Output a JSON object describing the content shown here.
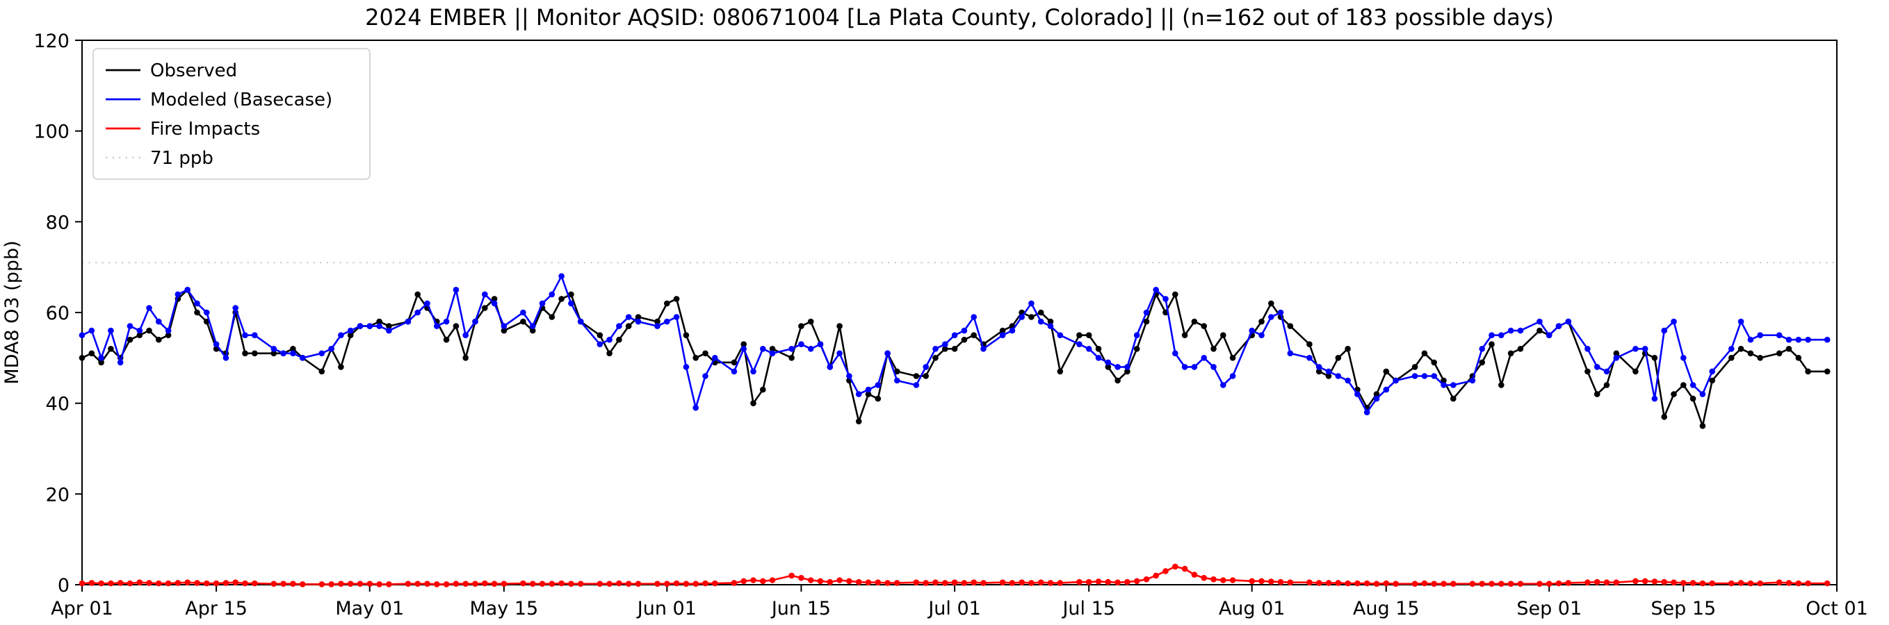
{
  "chart_data": {
    "type": "line",
    "title": "2024 EMBER || Monitor AQSID: 080671004 [La Plata County, Colorado] || (n=162 out of 183 possible days)",
    "xlabel": "",
    "ylabel": "MDA8 O3 (ppb)",
    "ylim": [
      0,
      120
    ],
    "yticks": [
      0,
      20,
      40,
      60,
      80,
      100,
      120
    ],
    "xlim": [
      0,
      183
    ],
    "xticks": [
      {
        "day": 0,
        "label": "Apr 01"
      },
      {
        "day": 14,
        "label": "Apr 15"
      },
      {
        "day": 30,
        "label": "May 01"
      },
      {
        "day": 44,
        "label": "May 15"
      },
      {
        "day": 61,
        "label": "Jun 01"
      },
      {
        "day": 75,
        "label": "Jun 15"
      },
      {
        "day": 91,
        "label": "Jul 01"
      },
      {
        "day": 105,
        "label": "Jul 15"
      },
      {
        "day": 122,
        "label": "Aug 01"
      },
      {
        "day": 136,
        "label": "Aug 15"
      },
      {
        "day": 153,
        "label": "Sep 01"
      },
      {
        "day": 167,
        "label": "Sep 15"
      },
      {
        "day": 183,
        "label": "Oct 01"
      }
    ],
    "threshold": {
      "value": 71,
      "label": "71 ppb",
      "color": "#d3d3d3",
      "style": "dotted"
    },
    "legend_position": "top-left",
    "grid": false,
    "x": [
      0,
      1,
      2,
      3,
      4,
      5,
      6,
      7,
      8,
      9,
      10,
      11,
      12,
      13,
      14,
      15,
      16,
      17,
      18,
      20,
      21,
      22,
      23,
      25,
      26,
      27,
      28,
      29,
      30,
      31,
      32,
      34,
      35,
      36,
      37,
      38,
      39,
      40,
      41,
      42,
      43,
      44,
      46,
      47,
      48,
      49,
      50,
      51,
      52,
      54,
      55,
      56,
      57,
      58,
      60,
      61,
      62,
      63,
      64,
      65,
      66,
      68,
      69,
      70,
      71,
      72,
      74,
      75,
      76,
      77,
      78,
      79,
      80,
      81,
      82,
      83,
      84,
      85,
      87,
      88,
      89,
      90,
      91,
      92,
      93,
      94,
      96,
      97,
      98,
      99,
      100,
      101,
      102,
      104,
      105,
      106,
      107,
      108,
      109,
      110,
      111,
      112,
      113,
      114,
      115,
      116,
      117,
      118,
      119,
      120,
      122,
      123,
      124,
      125,
      126,
      128,
      129,
      130,
      131,
      132,
      133,
      134,
      135,
      136,
      137,
      139,
      140,
      141,
      142,
      143,
      145,
      146,
      147,
      148,
      149,
      150,
      152,
      153,
      154,
      155,
      157,
      158,
      159,
      160,
      162,
      163,
      164,
      165,
      166,
      167,
      168,
      169,
      170,
      172,
      173,
      174,
      175,
      177,
      178,
      179,
      180,
      182
    ],
    "series": [
      {
        "name": "Observed",
        "color": "#000000",
        "marker": "circle",
        "values": [
          50,
          51,
          49,
          52,
          50,
          54,
          55,
          56,
          54,
          55,
          63,
          65,
          60,
          58,
          52,
          51,
          60,
          51,
          51,
          51,
          51,
          52,
          50,
          47,
          52,
          48,
          55,
          57,
          57,
          58,
          57,
          58,
          64,
          61,
          58,
          54,
          57,
          50,
          58,
          61,
          63,
          56,
          58,
          56,
          61,
          59,
          63,
          64,
          58,
          55,
          51,
          54,
          57,
          59,
          58,
          62,
          63,
          55,
          50,
          51,
          49,
          49,
          53,
          40,
          43,
          52,
          50,
          57,
          58,
          53,
          48,
          57,
          45,
          36,
          42,
          41,
          51,
          47,
          46,
          46,
          50,
          52,
          52,
          54,
          55,
          53,
          56,
          57,
          60,
          59,
          60,
          58,
          47,
          55,
          55,
          52,
          48,
          45,
          47,
          52,
          58,
          64,
          60,
          64,
          55,
          58,
          57,
          52,
          55,
          50,
          55,
          58,
          62,
          59,
          57,
          53,
          47,
          46,
          50,
          52,
          43,
          39,
          42,
          47,
          45,
          48,
          51,
          49,
          45,
          41,
          46,
          49,
          53,
          44,
          51,
          52,
          56,
          55,
          57,
          58,
          47,
          42,
          44,
          51,
          47,
          51,
          50,
          37,
          42,
          44,
          41,
          35,
          45,
          50,
          52,
          51,
          50,
          51,
          52,
          50,
          47,
          47
        ]
      },
      {
        "name": "Modeled (Basecase)",
        "color": "#0000ff",
        "marker": "circle",
        "values": [
          55,
          56,
          50,
          56,
          49,
          57,
          56,
          61,
          58,
          56,
          64,
          65,
          62,
          60,
          53,
          50,
          61,
          55,
          55,
          52,
          51,
          51,
          50,
          51,
          52,
          55,
          56,
          57,
          57,
          57,
          56,
          58,
          60,
          62,
          57,
          58,
          65,
          55,
          58,
          64,
          62,
          57,
          60,
          57,
          62,
          64,
          68,
          62,
          58,
          53,
          54,
          57,
          59,
          58,
          57,
          58,
          59,
          48,
          39,
          46,
          50,
          47,
          52,
          47,
          52,
          51,
          52,
          53,
          52,
          53,
          48,
          51,
          46,
          42,
          43,
          44,
          51,
          45,
          44,
          48,
          52,
          53,
          55,
          56,
          59,
          52,
          55,
          56,
          59,
          62,
          58,
          57,
          55,
          53,
          52,
          50,
          49,
          48,
          48,
          55,
          60,
          65,
          63,
          51,
          48,
          48,
          50,
          48,
          44,
          46,
          56,
          55,
          59,
          60,
          51,
          50,
          48,
          47,
          46,
          45,
          42,
          38,
          41,
          43,
          45,
          46,
          46,
          46,
          44,
          44,
          45,
          52,
          55,
          55,
          56,
          56,
          58,
          55,
          57,
          58,
          52,
          48,
          47,
          50,
          52,
          52,
          41,
          56,
          58,
          50,
          44,
          42,
          47,
          52,
          58,
          54,
          55,
          55,
          54,
          54,
          54,
          54
        ]
      },
      {
        "name": "Fire Impacts",
        "color": "#ff0000",
        "marker": "circle",
        "values": [
          0.3,
          0.4,
          0.3,
          0.3,
          0.4,
          0.3,
          0.5,
          0.4,
          0.3,
          0.3,
          0.4,
          0.5,
          0.4,
          0.3,
          0.3,
          0.4,
          0.5,
          0.3,
          0.3,
          0.2,
          0.2,
          0.2,
          0.1,
          0.1,
          0.1,
          0.2,
          0.2,
          0.2,
          0.2,
          0.1,
          0.1,
          0.2,
          0.2,
          0.2,
          0.1,
          0.1,
          0.2,
          0.2,
          0.2,
          0.3,
          0.2,
          0.2,
          0.3,
          0.2,
          0.2,
          0.2,
          0.3,
          0.2,
          0.2,
          0.2,
          0.2,
          0.3,
          0.2,
          0.2,
          0.2,
          0.2,
          0.3,
          0.2,
          0.2,
          0.3,
          0.3,
          0.4,
          0.8,
          1.0,
          0.8,
          1.0,
          2.0,
          1.5,
          1.0,
          0.8,
          0.6,
          1.0,
          0.8,
          0.6,
          0.5,
          0.5,
          0.4,
          0.4,
          0.5,
          0.4,
          0.5,
          0.4,
          0.5,
          0.4,
          0.5,
          0.4,
          0.5,
          0.4,
          0.5,
          0.4,
          0.5,
          0.4,
          0.4,
          0.6,
          0.6,
          0.7,
          0.6,
          0.5,
          0.6,
          0.8,
          1.2,
          2.0,
          3.0,
          4.0,
          3.5,
          2.2,
          1.5,
          1.2,
          1.0,
          1.0,
          0.8,
          0.8,
          0.7,
          0.6,
          0.5,
          0.5,
          0.4,
          0.4,
          0.4,
          0.3,
          0.3,
          0.3,
          0.2,
          0.3,
          0.2,
          0.2,
          0.3,
          0.2,
          0.2,
          0.2,
          0.2,
          0.2,
          0.2,
          0.2,
          0.2,
          0.2,
          0.2,
          0.2,
          0.3,
          0.4,
          0.5,
          0.6,
          0.5,
          0.5,
          0.8,
          0.8,
          0.7,
          0.6,
          0.5,
          0.4,
          0.4,
          0.3,
          0.3,
          0.3,
          0.4,
          0.3,
          0.3,
          0.5,
          0.4,
          0.3,
          0.3,
          0.3
        ]
      }
    ]
  }
}
